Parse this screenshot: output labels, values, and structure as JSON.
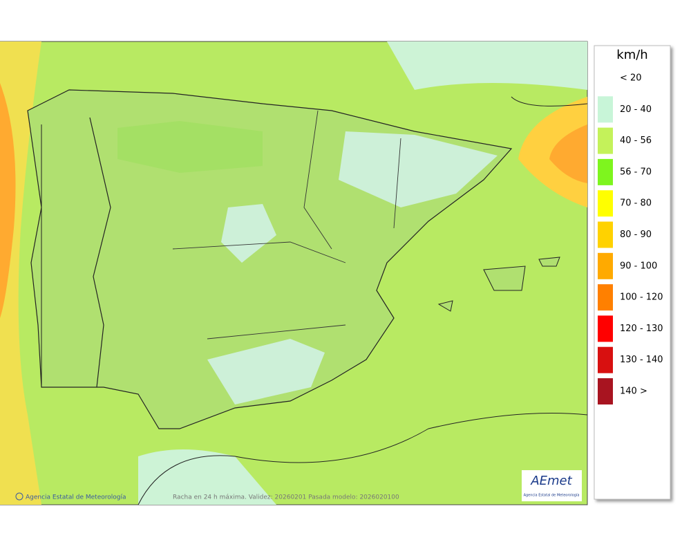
{
  "legend": {
    "unit": "km/h",
    "entries": [
      {
        "label": "< 20"
      },
      {
        "label": "20 - 40",
        "color": "#c8f5d8"
      },
      {
        "label": "40 - 56",
        "color": "#c4f25a"
      },
      {
        "label": "56 - 70",
        "color": "#7ef51e"
      },
      {
        "label": "70 - 80",
        "color": "#ffff00"
      },
      {
        "label": "80 - 90",
        "color": "#ffd200"
      },
      {
        "label": "90 - 100",
        "color": "#ffaa00"
      },
      {
        "label": "100 - 120",
        "color": "#ff8000"
      },
      {
        "label": "120 - 130",
        "color": "#ff0000"
      },
      {
        "label": "130 - 140",
        "color": "#d81010"
      },
      {
        "label": "140 >",
        "color": "#a81420"
      }
    ]
  },
  "footer": {
    "credit": "Agencia Estatal de Meteorología",
    "caption": "Racha en 24 h máxima. Validez: 20260201 Pasada modelo: 2026020100"
  },
  "logo": {
    "name": "AEmet",
    "subtitle": "Agencia Estatal de Meteorología"
  }
}
